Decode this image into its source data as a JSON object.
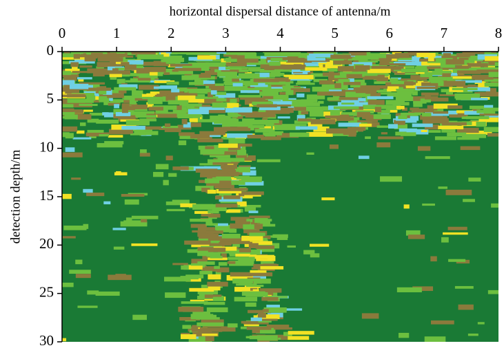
{
  "chart_data": {
    "type": "radargram",
    "x_label": "horizontal dispersal distance of antenna/m",
    "y_label": "detection depth/m",
    "xlim": [
      0,
      8
    ],
    "xticks": [
      0,
      1,
      2,
      3,
      4,
      5,
      6,
      7,
      8
    ],
    "ylim": [
      0,
      30
    ],
    "yticks": [
      0,
      5,
      10,
      15,
      20,
      25,
      30
    ],
    "y_inverted": true,
    "x_axis_position": "top",
    "background_color": "#1a7a35",
    "palette": [
      "#6cbf3f",
      "#8b7a3c",
      "#f2e224",
      "#6fd0e4"
    ]
  }
}
